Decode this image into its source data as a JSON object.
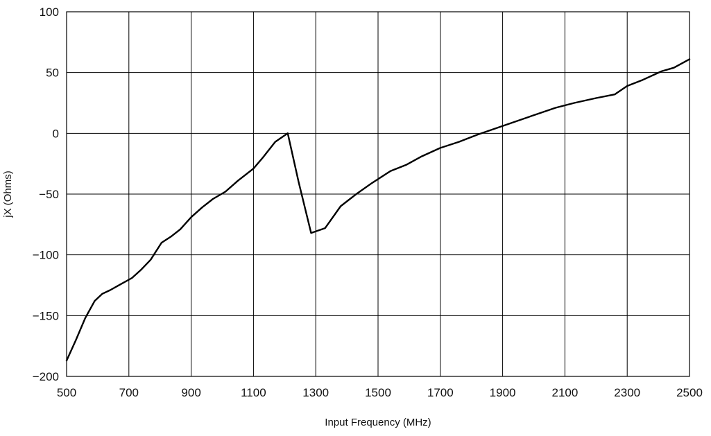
{
  "chart_data": {
    "type": "line",
    "xlabel": "Input Frequency (MHz)",
    "ylabel": "jX (Ohms)",
    "xlim": [
      500,
      2500
    ],
    "ylim": [
      -200,
      100
    ],
    "grid": true,
    "x_ticks": [
      500,
      700,
      900,
      1100,
      1300,
      1500,
      1700,
      1900,
      2100,
      2300,
      2500
    ],
    "x_tick_labels": [
      "500",
      "700",
      "900",
      "1100",
      "1300",
      "1500",
      "1700",
      "1900",
      "2100",
      "2300",
      "2500"
    ],
    "y_ticks": [
      100,
      50,
      0,
      -50,
      -100,
      -150,
      -200
    ],
    "y_tick_labels": [
      "100",
      "50",
      "0",
      "−50",
      "−100",
      "−150",
      "−200"
    ],
    "series": [
      {
        "color": "#000000",
        "points": [
          [
            500,
            -187
          ],
          [
            530,
            -170
          ],
          [
            560,
            -152
          ],
          [
            590,
            -138
          ],
          [
            615,
            -132
          ],
          [
            640,
            -129
          ],
          [
            675,
            -124
          ],
          [
            710,
            -119
          ],
          [
            740,
            -112
          ],
          [
            770,
            -104
          ],
          [
            805,
            -90
          ],
          [
            835,
            -85
          ],
          [
            865,
            -79
          ],
          [
            900,
            -69
          ],
          [
            935,
            -61
          ],
          [
            970,
            -54
          ],
          [
            1010,
            -48
          ],
          [
            1050,
            -39
          ],
          [
            1100,
            -29
          ],
          [
            1130,
            -20
          ],
          [
            1170,
            -7
          ],
          [
            1210,
            0
          ],
          [
            1245,
            -40
          ],
          [
            1285,
            -82
          ],
          [
            1330,
            -78
          ],
          [
            1380,
            -60
          ],
          [
            1430,
            -50
          ],
          [
            1480,
            -41
          ],
          [
            1540,
            -31
          ],
          [
            1590,
            -26
          ],
          [
            1640,
            -19
          ],
          [
            1700,
            -12
          ],
          [
            1760,
            -7
          ],
          [
            1820,
            -1
          ],
          [
            1900,
            6
          ],
          [
            1990,
            14
          ],
          [
            2070,
            21
          ],
          [
            2130,
            25
          ],
          [
            2200,
            29
          ],
          [
            2260,
            32
          ],
          [
            2300,
            39
          ],
          [
            2350,
            44
          ],
          [
            2410,
            51
          ],
          [
            2450,
            54
          ],
          [
            2500,
            61
          ]
        ]
      }
    ]
  }
}
